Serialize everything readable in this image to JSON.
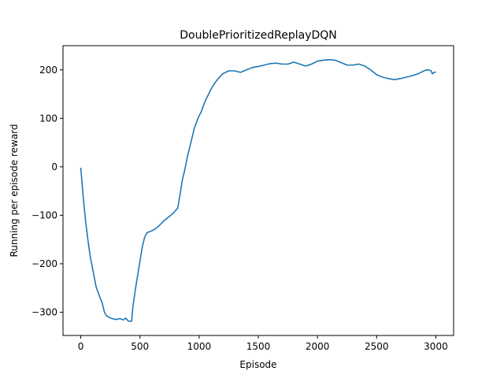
{
  "chart_data": {
    "type": "line",
    "title": "DoublePrioritizedReplayDQN",
    "xlabel": "Episode",
    "ylabel": "Running per episode reward",
    "xlim": [
      -150,
      3150
    ],
    "ylim": [
      -348,
      250
    ],
    "xticks": [
      0,
      500,
      1000,
      1500,
      2000,
      2500,
      3000
    ],
    "yticks": [
      -300,
      -200,
      -100,
      0,
      100,
      200
    ],
    "xtick_labels": [
      "0",
      "500",
      "1000",
      "1500",
      "2000",
      "2500",
      "3000"
    ],
    "ytick_labels": [
      "−300",
      "−200",
      "−100",
      "0",
      "100",
      "200"
    ],
    "grid": false,
    "color": "#1f77b4",
    "series": [
      {
        "x": [
          0,
          20,
          40,
          60,
          80,
          100,
          130,
          160,
          180,
          200,
          220,
          250,
          280,
          300,
          330,
          360,
          380,
          400,
          420,
          430,
          440,
          460,
          480,
          500,
          520,
          540,
          560,
          580,
          600,
          630,
          660,
          700,
          740,
          780,
          820,
          840,
          850,
          860,
          880,
          900,
          930,
          960,
          990,
          1020,
          1050,
          1080,
          1100,
          1130,
          1160,
          1200,
          1250,
          1300,
          1350,
          1400,
          1450,
          1500,
          1550,
          1600,
          1650,
          1700,
          1750,
          1800,
          1850,
          1900,
          1950,
          2000,
          2050,
          2100,
          2150,
          2200,
          2250,
          2300,
          2350,
          2400,
          2450,
          2500,
          2550,
          2600,
          2650,
          2700,
          2750,
          2800,
          2850,
          2900,
          2920,
          2940,
          2960,
          2970,
          2980,
          3000
        ],
        "y": [
          -2,
          -60,
          -110,
          -150,
          -185,
          -210,
          -248,
          -268,
          -280,
          -300,
          -308,
          -312,
          -314,
          -315,
          -313,
          -316,
          -312,
          -318,
          -319,
          -318,
          -290,
          -255,
          -225,
          -195,
          -165,
          -145,
          -136,
          -134,
          -132,
          -128,
          -122,
          -112,
          -104,
          -96,
          -85,
          -55,
          -40,
          -25,
          -5,
          20,
          50,
          80,
          100,
          115,
          135,
          150,
          160,
          172,
          182,
          192,
          198,
          198,
          195,
          200,
          205,
          207,
          210,
          213,
          214,
          212,
          212,
          216,
          212,
          208,
          212,
          218,
          220,
          221,
          220,
          215,
          210,
          210,
          212,
          208,
          200,
          190,
          185,
          182,
          180,
          182,
          185,
          188,
          192,
          198,
          200,
          200,
          198,
          192,
          194,
          196
        ]
      }
    ]
  }
}
